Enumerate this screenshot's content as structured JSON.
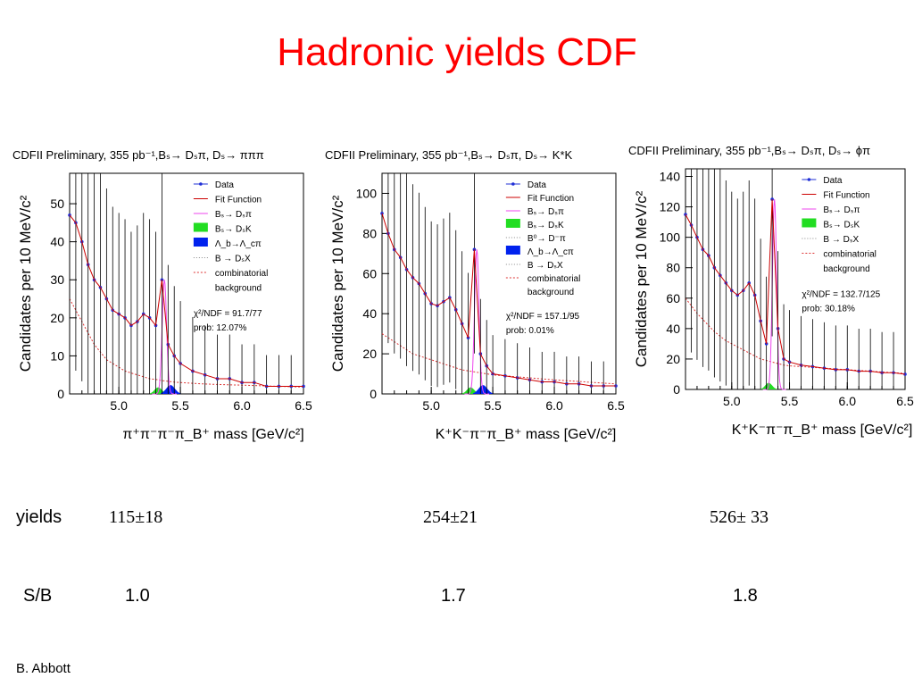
{
  "slide": {
    "title": "Hadronic yields CDF",
    "author": "B. Abbott"
  },
  "colors": {
    "title": "#ff0000",
    "data": "#1f2fd6",
    "fit": "#cc0000",
    "bs_dspi": "#ee44ee",
    "bs_dsk": "#22dd22",
    "lambda": "#0022ee",
    "comb": "#dd3333"
  },
  "table": {
    "yields_label": "yields",
    "sb_label": "S/B",
    "yields": [
      "115±18",
      "254±21",
      "526± 33"
    ],
    "sb": [
      "1.0",
      "1.7",
      "1.8"
    ]
  },
  "chart_data": [
    {
      "type": "scatter",
      "title": "CDFII Preliminary, 355 pb⁻¹,Bₛ→ Dₛπ, Dₛ→ πππ",
      "xlabel": "π⁺π⁻π⁻π_B⁺ mass [GeV/c²]",
      "ylabel": "Candidates per 10 MeV/c²",
      "xlim": [
        4.6,
        6.5
      ],
      "ylim": [
        0,
        58
      ],
      "xticks": [
        "5.0",
        "5.5",
        "6.0",
        "6.5"
      ],
      "yticks": [
        "0",
        "10",
        "20",
        "30",
        "40",
        "50"
      ],
      "legend": [
        "Data",
        "Fit Function",
        "Bₛ→ Dₛπ",
        "Bₛ→ DₛK",
        "Λ_b→Λ_cπ",
        "B → DₛX",
        "combinatorial",
        "background"
      ],
      "stats": [
        "χ²/NDF = 91.7/77",
        "prob:  12.07%"
      ],
      "peak": {
        "x": 5.37,
        "y": 30
      },
      "data_x": [
        4.6,
        4.65,
        4.7,
        4.75,
        4.8,
        4.85,
        4.9,
        4.95,
        5.0,
        5.05,
        5.1,
        5.15,
        5.2,
        5.25,
        5.3,
        5.35,
        5.4,
        5.45,
        5.5,
        5.6,
        5.7,
        5.8,
        5.9,
        6.0,
        6.1,
        6.2,
        6.3,
        6.4,
        6.5
      ],
      "data_y": [
        47,
        45,
        40,
        34,
        30,
        28,
        25,
        22,
        21,
        20,
        18,
        19,
        21,
        20,
        18,
        30,
        13,
        10,
        8,
        6,
        5,
        4,
        4,
        3,
        3,
        2,
        2,
        2,
        2
      ],
      "comb_y": [
        25,
        22,
        19,
        16,
        13,
        11,
        9,
        8,
        7,
        6,
        5.5,
        5,
        4.5,
        4,
        3.8,
        3.5,
        3.3,
        3.1,
        3,
        2.8,
        2.6,
        2.5,
        2.4,
        2.3,
        2.2,
        2.1,
        2.0,
        1.9,
        1.8
      ]
    },
    {
      "type": "scatter",
      "title": "CDFII Preliminary, 355 pb⁻¹,Bₛ→ Dₛπ, Dₛ→ K*K",
      "xlabel": "K⁺K⁻π⁻π_B⁺ mass [GeV/c²]",
      "ylabel": "Candidates per 10 MeV/c²",
      "xlim": [
        4.6,
        6.5
      ],
      "ylim": [
        0,
        110
      ],
      "xticks": [
        "5.0",
        "5.5",
        "6.0",
        "6.5"
      ],
      "yticks": [
        "0",
        "20",
        "40",
        "60",
        "80",
        "100"
      ],
      "legend": [
        "Data",
        "Fit Function",
        "Bₛ→ Dₛπ",
        "Bₛ→ DₛK",
        "B⁰→ D⁻π",
        "Λ_b→Λ_cπ",
        "B → DₛX",
        "combinatorial",
        "background"
      ],
      "stats": [
        "χ²/NDF = 157.1/95",
        "prob:   0.01%"
      ],
      "peak": {
        "x": 5.37,
        "y": 72
      },
      "data_x": [
        4.6,
        4.65,
        4.7,
        4.75,
        4.8,
        4.85,
        4.9,
        4.95,
        5.0,
        5.05,
        5.1,
        5.15,
        5.2,
        5.25,
        5.3,
        5.35,
        5.4,
        5.45,
        5.5,
        5.6,
        5.7,
        5.8,
        5.9,
        6.0,
        6.1,
        6.2,
        6.3,
        6.4,
        6.5
      ],
      "data_y": [
        90,
        80,
        72,
        68,
        62,
        58,
        55,
        50,
        45,
        44,
        46,
        48,
        42,
        35,
        28,
        72,
        20,
        14,
        10,
        9,
        8,
        7,
        6,
        6,
        5,
        5,
        4,
        4,
        4
      ],
      "comb_y": [
        30,
        28,
        26,
        24,
        22,
        20,
        19,
        18,
        17,
        16,
        15,
        14,
        13,
        12,
        11.5,
        11,
        10.5,
        10,
        9.5,
        9,
        8.5,
        8,
        7.5,
        7,
        6.6,
        6.2,
        5.8,
        5.4,
        5.0
      ]
    },
    {
      "type": "scatter",
      "title": "CDFII Preliminary, 355 pb⁻¹,Bₛ→ Dₛπ, Dₛ→ ϕπ",
      "xlabel": "K⁺K⁻π⁻π_B⁺ mass [GeV/c²]",
      "ylabel": "Candidates per 10 MeV/c²",
      "xlim": [
        4.6,
        6.5
      ],
      "ylim": [
        0,
        145
      ],
      "xticks": [
        "5.0",
        "5.5",
        "6.0",
        "6.5"
      ],
      "yticks": [
        "0",
        "20",
        "40",
        "60",
        "80",
        "100",
        "120",
        "140"
      ],
      "legend": [
        "Data",
        "Fit Function",
        "Bₛ→ Dₛπ",
        "Bₛ→ DₛK",
        "B → DₛX",
        "combinatorial",
        "background"
      ],
      "stats": [
        "χ²/NDF = 132.7/125",
        "prob:  30.18%"
      ],
      "peak": {
        "x": 5.37,
        "y": 125
      },
      "data_x": [
        4.6,
        4.65,
        4.7,
        4.75,
        4.8,
        4.85,
        4.9,
        4.95,
        5.0,
        5.05,
        5.1,
        5.15,
        5.2,
        5.25,
        5.3,
        5.35,
        5.4,
        5.45,
        5.5,
        5.6,
        5.7,
        5.8,
        5.9,
        6.0,
        6.1,
        6.2,
        6.3,
        6.4,
        6.5
      ],
      "data_y": [
        115,
        108,
        100,
        92,
        88,
        80,
        75,
        70,
        65,
        62,
        65,
        70,
        62,
        45,
        30,
        125,
        40,
        20,
        18,
        16,
        15,
        14,
        13,
        13,
        12,
        12,
        11,
        11,
        10
      ],
      "comb_y": [
        60,
        55,
        50,
        46,
        42,
        38,
        35,
        32,
        30,
        28,
        26,
        24,
        22,
        20,
        19,
        18,
        17,
        16,
        15.5,
        15,
        14.5,
        14,
        13.5,
        13,
        12.5,
        12,
        11.5,
        11,
        10.5
      ]
    }
  ]
}
